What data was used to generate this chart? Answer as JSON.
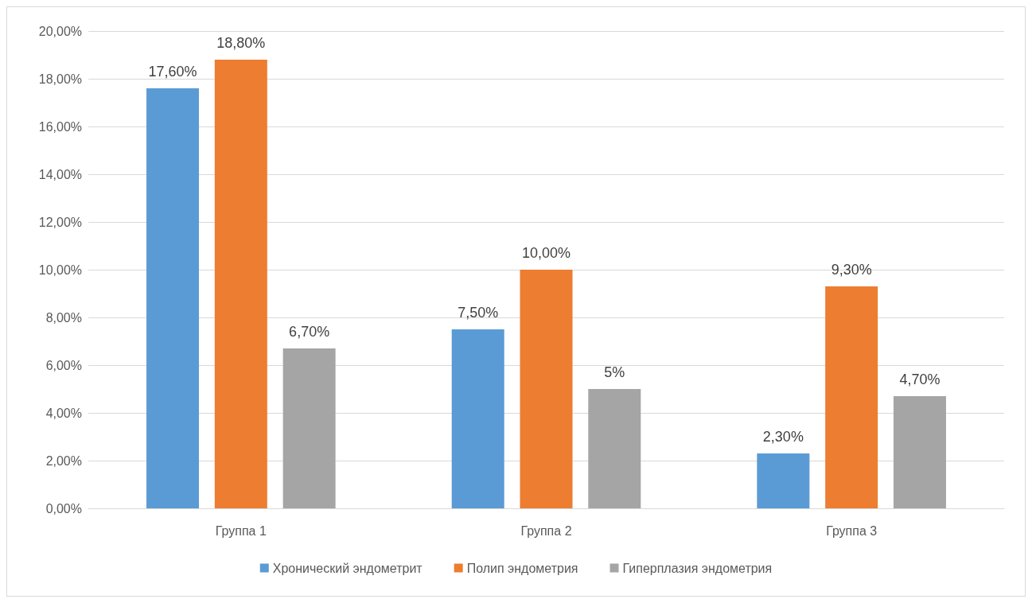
{
  "chart_data": {
    "type": "bar",
    "categories": [
      "Группа 1",
      "Группа 2",
      "Группа 3"
    ],
    "series": [
      {
        "name": "Хронический эндометрит",
        "color": "#5b9bd5",
        "values": [
          17.6,
          7.5,
          2.3
        ],
        "value_labels": [
          "17,60%",
          "7,50%",
          "2,30%"
        ]
      },
      {
        "name": "Полип эндометрия",
        "color": "#ed7d31",
        "values": [
          18.8,
          10,
          9.3
        ],
        "value_labels": [
          "18,80%",
          "10,00%",
          "9,30%"
        ]
      },
      {
        "name": "Гиперплазия эндометрия",
        "color": "#a5a5a5",
        "values": [
          6.7,
          5,
          4.7
        ],
        "value_labels": [
          "6,70%",
          "5%",
          "4,70%"
        ]
      }
    ],
    "ylim": [
      0,
      20
    ],
    "yticks": [
      {
        "value": 0,
        "label": "0,00%"
      },
      {
        "value": 2,
        "label": "2,00%"
      },
      {
        "value": 4,
        "label": "4,00%"
      },
      {
        "value": 6,
        "label": "6,00%"
      },
      {
        "value": 8,
        "label": "8,00%"
      },
      {
        "value": 10,
        "label": "10,00%"
      },
      {
        "value": 12,
        "label": "12,00%"
      },
      {
        "value": 14,
        "label": "14,00%"
      },
      {
        "value": 16,
        "label": "16,00%"
      },
      {
        "value": 18,
        "label": "18,00%"
      },
      {
        "value": 20,
        "label": "20,00%"
      }
    ],
    "grid": "y",
    "legend": "bottom"
  }
}
